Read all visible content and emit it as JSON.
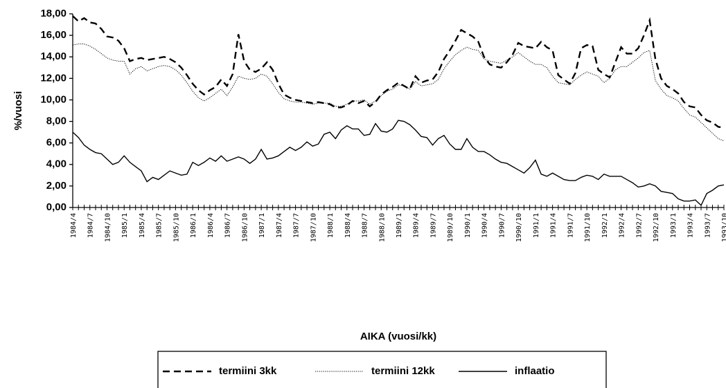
{
  "chart_data": {
    "type": "line",
    "ylabel": "%/vuosi",
    "xlabel": "AIKA (vuosi/kk)",
    "ylim": [
      0,
      18
    ],
    "yticks": [
      {
        "value": 0,
        "label": "0,00"
      },
      {
        "value": 2,
        "label": "2,00"
      },
      {
        "value": 4,
        "label": "4,00"
      },
      {
        "value": 6,
        "label": "6,00"
      },
      {
        "value": 8,
        "label": "8,00"
      },
      {
        "value": 10,
        "label": "10,00"
      },
      {
        "value": 12,
        "label": "12,00"
      },
      {
        "value": 14,
        "label": "14,00"
      },
      {
        "value": 16,
        "label": "16,00"
      },
      {
        "value": 18,
        "label": "18,00"
      }
    ],
    "categories": [
      "1984/4",
      null,
      null,
      "1984/7",
      null,
      null,
      "1984/10",
      null,
      null,
      "1985/1",
      null,
      null,
      "1985/4",
      null,
      null,
      "1985/7",
      null,
      null,
      "1985/10",
      null,
      null,
      "1986/1",
      null,
      null,
      "1986/4",
      null,
      null,
      "1986/7",
      null,
      null,
      "1986/10",
      null,
      null,
      "1987/1",
      null,
      null,
      "1987/4",
      null,
      null,
      "1987/7",
      null,
      null,
      "1987/10",
      null,
      null,
      "1988/1",
      null,
      null,
      "1988/4",
      null,
      null,
      "1988/7",
      null,
      null,
      "1988/10",
      null,
      null,
      "1989/1",
      null,
      null,
      "1989/4",
      null,
      null,
      "1989/7",
      null,
      null,
      "1989/10",
      null,
      null,
      "1990/1",
      null,
      null,
      "1990/4",
      null,
      null,
      "1990/7",
      null,
      null,
      "1990/10",
      null,
      null,
      "1991/1",
      null,
      null,
      "1991/4",
      null,
      null,
      "1991/7",
      null,
      null,
      "1991/10",
      null,
      null,
      "1992/1",
      null,
      null,
      "1992/4",
      null,
      null,
      "1992/7",
      null,
      null,
      "1992/10",
      null,
      null,
      "1993/1",
      null,
      null,
      "1993/4",
      null,
      null,
      "1993/7",
      null,
      null,
      "1993/10"
    ],
    "series": [
      {
        "name": "termiini 3kk",
        "color": "#000000",
        "linestyle": "dashed",
        "values": [
          17.8,
          17.3,
          17.6,
          17.2,
          17.1,
          16.6,
          15.9,
          15.8,
          15.5,
          14.8,
          13.6,
          13.8,
          13.9,
          13.7,
          13.8,
          13.9,
          14.0,
          13.8,
          13.5,
          13.0,
          12.3,
          11.5,
          10.9,
          10.5,
          10.9,
          11.2,
          11.9,
          11.3,
          12.4,
          16.1,
          13.6,
          12.8,
          12.6,
          12.9,
          13.5,
          12.8,
          11.5,
          10.5,
          10.2,
          10.0,
          9.9,
          9.8,
          9.7,
          9.8,
          9.7,
          9.6,
          9.3,
          9.3,
          9.5,
          9.9,
          9.7,
          9.9,
          9.4,
          9.8,
          10.5,
          10.9,
          11.2,
          11.6,
          11.3,
          11.0,
          12.2,
          11.6,
          11.8,
          11.9,
          12.6,
          13.8,
          14.6,
          15.5,
          16.5,
          16.2,
          15.9,
          15.4,
          14.0,
          13.3,
          13.1,
          13.0,
          13.5,
          14.2,
          15.3,
          15.0,
          14.9,
          14.8,
          15.4,
          14.9,
          14.6,
          12.3,
          11.9,
          11.5,
          12.5,
          14.8,
          15.1,
          15.0,
          12.8,
          12.4,
          12.1,
          13.5,
          14.9,
          14.3,
          14.3,
          14.8,
          16.0,
          17.4,
          13.8,
          12.0,
          11.3,
          11.0,
          10.6,
          9.8,
          9.4,
          9.3,
          8.6,
          8.1,
          7.9,
          7.5,
          7.4
        ]
      },
      {
        "name": "termiini 12kk",
        "color": "#000000",
        "linestyle": "dotted",
        "values": [
          15.1,
          15.2,
          15.2,
          15.0,
          14.7,
          14.3,
          13.9,
          13.7,
          13.6,
          13.6,
          12.4,
          12.9,
          13.1,
          12.7,
          12.9,
          13.1,
          13.2,
          13.1,
          12.8,
          12.3,
          11.6,
          10.8,
          10.2,
          9.9,
          10.2,
          10.6,
          11.0,
          10.4,
          11.2,
          12.2,
          12.0,
          11.9,
          12.0,
          12.4,
          12.2,
          11.5,
          10.7,
          10.1,
          9.9,
          9.8,
          9.8,
          9.7,
          9.6,
          9.7,
          9.7,
          9.7,
          9.4,
          9.4,
          9.6,
          9.9,
          9.9,
          10.0,
          9.6,
          9.9,
          10.4,
          10.8,
          11.0,
          11.4,
          11.3,
          11.0,
          11.7,
          11.3,
          11.4,
          11.5,
          11.9,
          12.9,
          13.6,
          14.2,
          14.6,
          14.9,
          14.7,
          14.6,
          13.8,
          13.6,
          13.5,
          13.4,
          13.7,
          14.0,
          14.4,
          14.0,
          13.6,
          13.3,
          13.3,
          13.0,
          12.2,
          11.6,
          11.5,
          11.4,
          11.9,
          12.3,
          12.6,
          12.4,
          12.2,
          11.6,
          12.0,
          12.8,
          13.1,
          13.1,
          13.5,
          13.9,
          14.4,
          14.6,
          11.8,
          11.0,
          10.4,
          10.2,
          9.9,
          9.2,
          8.6,
          8.4,
          7.9,
          7.4,
          6.9,
          6.4,
          6.2
        ]
      },
      {
        "name": "inflaatio",
        "color": "#000000",
        "linestyle": "solid",
        "values": [
          7.0,
          6.5,
          5.8,
          5.4,
          5.1,
          5.0,
          4.5,
          4.0,
          4.2,
          4.8,
          4.2,
          3.8,
          3.4,
          2.4,
          2.8,
          2.6,
          3.0,
          3.4,
          3.2,
          3.0,
          3.1,
          4.2,
          3.9,
          4.2,
          4.6,
          4.3,
          4.8,
          4.3,
          4.5,
          4.7,
          4.5,
          4.1,
          4.5,
          5.4,
          4.5,
          4.6,
          4.8,
          5.2,
          5.6,
          5.3,
          5.6,
          6.1,
          5.7,
          5.9,
          6.8,
          7.0,
          6.4,
          7.2,
          7.6,
          7.3,
          7.3,
          6.7,
          6.8,
          7.8,
          7.1,
          7.0,
          7.3,
          8.1,
          8.0,
          7.7,
          7.2,
          6.6,
          6.5,
          5.8,
          6.4,
          6.7,
          5.9,
          5.4,
          5.4,
          6.4,
          5.6,
          5.2,
          5.2,
          4.9,
          4.5,
          4.2,
          4.1,
          3.8,
          3.5,
          3.2,
          3.7,
          4.4,
          3.1,
          2.9,
          3.2,
          2.9,
          2.6,
          2.5,
          2.5,
          2.8,
          3.0,
          2.9,
          2.6,
          3.1,
          2.9,
          2.9,
          2.9,
          2.6,
          2.3,
          1.9,
          2.0,
          2.2,
          2.0,
          1.5,
          1.4,
          1.3,
          0.8,
          0.6,
          0.6,
          0.7,
          0.2,
          1.3,
          1.6,
          2.0,
          2.1
        ]
      }
    ]
  }
}
